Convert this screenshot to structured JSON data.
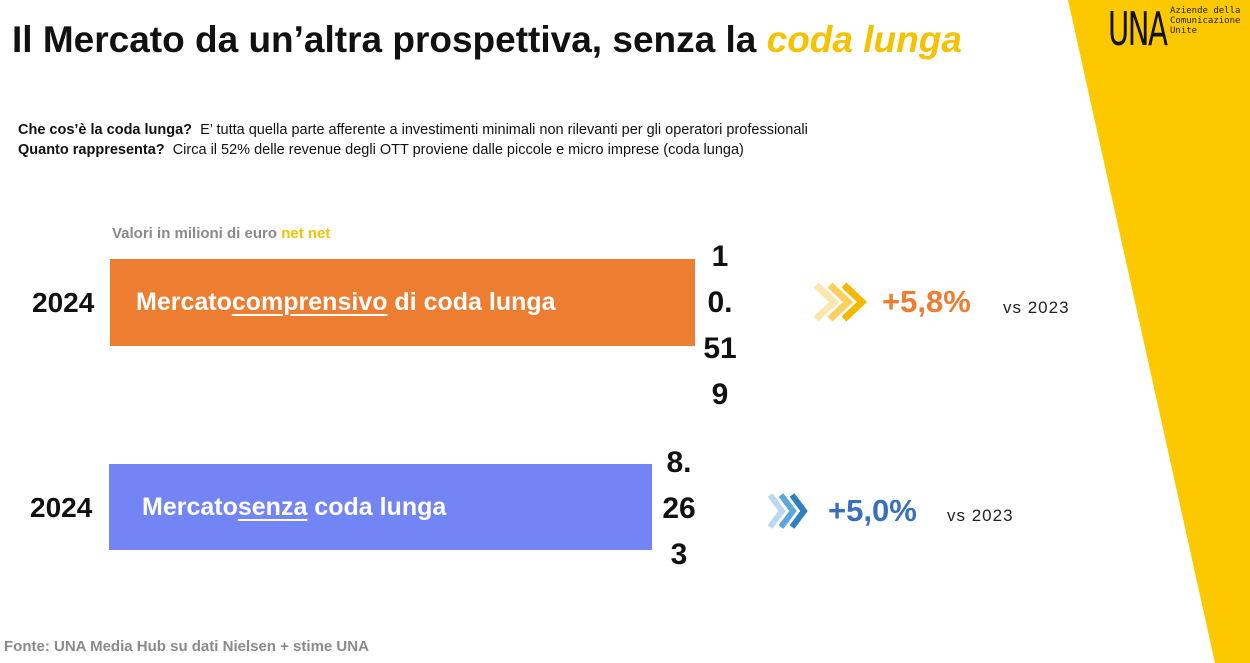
{
  "header": {
    "title": "Il Mercato da un’altra prospettiva, senza la ",
    "title_highlight": "coda lunga"
  },
  "logo": {
    "mark": "UNA",
    "lines": [
      "Aziende della",
      "Comunicazione",
      "Unite"
    ]
  },
  "intro": [
    {
      "label": "Che cos’è la coda lunga?",
      "text": "E’ tutta quella parte afferente a investimenti minimali non rilevanti per gli operatori professionali"
    },
    {
      "label": "Quanto rappresenta?",
      "text": "Circa il 52% delle revenue degli OTT proviene dalle piccole e micro imprese (coda lunga)"
    }
  ],
  "unit_note": {
    "text": "Valori in milioni di euro ",
    "highlight": "net net"
  },
  "rows": [
    {
      "year": "2024",
      "label_start": "Mercato ",
      "label_underlined": "comprensivo",
      "label_end": " di coda lunga",
      "value": 10.519,
      "change": "+5,8%",
      "comparison": "vs 2023"
    },
    {
      "year": "2024",
      "label_start": "Mercato ",
      "label_underlined": "senza",
      "label_end": " coda lunga",
      "value": 8.263,
      "change": "+5,0%",
      "comparison": "vs 2023"
    }
  ],
  "source": "Fonte: UNA Media Hub su dati Nielsen + stime UNA"
}
